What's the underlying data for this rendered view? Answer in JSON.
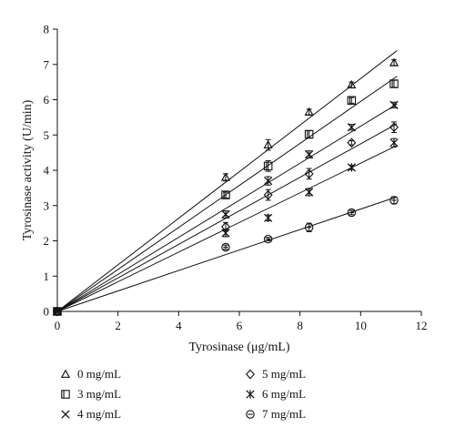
{
  "chart_data": {
    "type": "scatter",
    "title": "",
    "xlabel": "Tyrosinase (μg/mL)",
    "ylabel": "Tyrosinase activity (U/min)",
    "xlim": [
      0,
      12
    ],
    "ylim": [
      0,
      8
    ],
    "x_ticks": [
      "0",
      "2",
      "4",
      "6",
      "8",
      "10",
      "12"
    ],
    "y_ticks": [
      "0",
      "1",
      "2",
      "3",
      "4",
      "5",
      "6",
      "7",
      "8"
    ],
    "grid": false,
    "legend_position": "bottom",
    "trendlines": "linear fit through origin for each series",
    "series": [
      {
        "name": "0 mg/mL",
        "marker": "triangle",
        "x": [
          0,
          5.55,
          6.95,
          8.3,
          9.7,
          11.1
        ],
        "y": [
          0,
          3.8,
          4.72,
          5.65,
          6.42,
          7.05
        ],
        "error": [
          0,
          0.1,
          0.15,
          0.08,
          0.08,
          0.08
        ],
        "slope": 0.66
      },
      {
        "name": "3 mg/mL",
        "marker": "square",
        "x": [
          0,
          5.55,
          6.95,
          8.3,
          9.7,
          11.1
        ],
        "y": [
          0,
          3.3,
          4.12,
          5.02,
          5.98,
          6.45
        ],
        "error": [
          0,
          0.08,
          0.15,
          0.1,
          0.08,
          0.1
        ],
        "slope": 0.595
      },
      {
        "name": "4 mg/mL",
        "marker": "x",
        "x": [
          0,
          5.55,
          6.95,
          8.3,
          9.7,
          11.1
        ],
        "y": [
          0,
          2.75,
          3.7,
          4.45,
          5.22,
          5.85
        ],
        "error": [
          0,
          0.1,
          0.12,
          0.1,
          0.08,
          0.08
        ],
        "slope": 0.525
      },
      {
        "name": "5 mg/mL",
        "marker": "diamond",
        "x": [
          0,
          5.55,
          6.95,
          8.3,
          9.7,
          11.1
        ],
        "y": [
          0,
          2.4,
          3.3,
          3.9,
          4.78,
          5.22
        ],
        "error": [
          0,
          0.12,
          0.15,
          0.15,
          0.06,
          0.15
        ],
        "slope": 0.475
      },
      {
        "name": "6 mg/mL",
        "marker": "asterisk",
        "x": [
          0,
          5.55,
          6.95,
          8.3,
          9.7,
          11.1
        ],
        "y": [
          0,
          2.22,
          2.65,
          3.38,
          4.08,
          4.78
        ],
        "error": [
          0,
          0.1,
          0.08,
          0.1,
          0.06,
          0.12
        ],
        "slope": 0.42
      },
      {
        "name": "7 mg/mL",
        "marker": "circle",
        "x": [
          0,
          5.55,
          6.95,
          8.3,
          9.7,
          11.1
        ],
        "y": [
          0,
          1.82,
          2.05,
          2.38,
          2.8,
          3.15
        ],
        "error": [
          0,
          0.06,
          0.05,
          0.12,
          0.06,
          0.1
        ],
        "slope": 0.29
      }
    ]
  },
  "colors": {
    "ink": "#111111",
    "background": "#ffffff"
  }
}
